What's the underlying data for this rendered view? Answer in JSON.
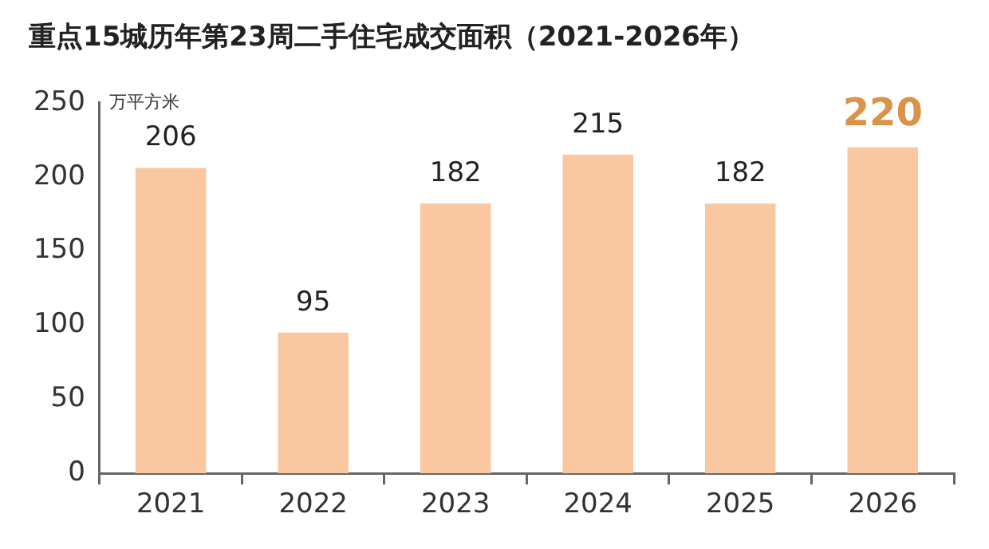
{
  "chart_data": {
    "type": "bar",
    "title": "重点15城历年第23周二手住宅成交面积（2021-2026年）",
    "ylabel": "万平方米",
    "categories": [
      "2021",
      "2022",
      "2023",
      "2024",
      "2025",
      "2026"
    ],
    "values": [
      206,
      95,
      182,
      215,
      182,
      220
    ],
    "color": "#f9c8a0",
    "ylim": [
      0,
      250
    ],
    "yticks": [
      0,
      50,
      100,
      150,
      200,
      250
    ],
    "grid": false,
    "legend": false,
    "data_labels": true
  }
}
